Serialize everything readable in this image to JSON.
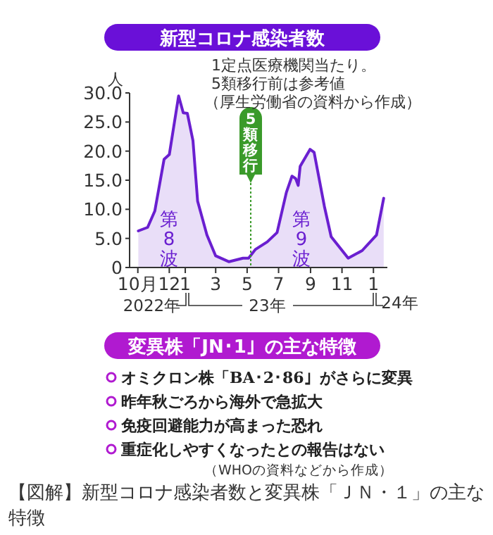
{
  "chart_data": [
    {
      "type": "area",
      "title": "新型コロナ感染者数",
      "ylabel": "人",
      "annotations": [
        "1定点医療機関当たり。",
        "5類移行前は参考値",
        "（厚生労働省の資料から作成）",
        "2022年",
        "23年",
        "24年",
        "第8波",
        "第9波"
      ],
      "x": [
        "2022-10-02",
        "2022-10-20",
        "2022-11-03",
        "2022-11-21",
        "2022-12-01",
        "2022-12-19",
        "2022-12-28",
        "2023-01-05",
        "2023-01-16",
        "2023-01-25",
        "2023-02-12",
        "2023-03-01",
        "2023-03-27",
        "2023-04-23",
        "2023-05-04",
        "2023-05-17",
        "2023-06-09",
        "2023-06-28",
        "2023-07-16",
        "2023-07-27",
        "2023-08-03",
        "2023-08-08",
        "2023-08-12",
        "2023-08-31",
        "2023-09-08",
        "2023-09-28",
        "2023-10-11",
        "2023-11-13",
        "2023-12-10",
        "2024-01-07",
        "2024-01-21"
      ],
      "series": [
        {
          "color": "#6a1fd0",
          "values": [
            6.3,
            6.9,
            9.7,
            18.6,
            19.4,
            29.5,
            26.6,
            26.5,
            21.8,
            11.4,
            5.6,
            2.0,
            1.0,
            1.6,
            1.6,
            3.1,
            4.4,
            6.0,
            12.9,
            15.7,
            15.3,
            14.1,
            17.4,
            20.3,
            19.8,
            10.5,
            5.3,
            1.6,
            2.9,
            5.6,
            11.9
          ]
        }
      ],
      "xlim": [
        "2022-09-15",
        "2024-01-28"
      ],
      "ylim": [
        0,
        30
      ],
      "yticks": [
        0,
        {
          "value": 5,
          "label": "5.0"
        },
        {
          "value": 10,
          "label": "10.0"
        },
        {
          "value": 15,
          "label": "15.0"
        },
        {
          "value": 20,
          "label": "20.0"
        },
        {
          "value": 25,
          "label": "25.0"
        },
        {
          "value": 30,
          "label": "30.0"
        }
      ],
      "xticks": [
        {
          "value": "2022-10-01",
          "label": "10月"
        },
        {
          "value": "2022-12-01",
          "label": "12"
        },
        {
          "value": "2023-01-01",
          "label": "1"
        },
        {
          "value": "2023-03-01",
          "label": "3"
        },
        {
          "value": "2023-05-01",
          "label": "5"
        },
        {
          "value": "2023-07-01",
          "label": "7"
        },
        {
          "value": "2023-09-01",
          "label": "9"
        },
        {
          "value": "2023-11-01",
          "label": "11"
        },
        {
          "value": "2024-01-01",
          "label": "1"
        }
      ],
      "ref_lines": [
        {
          "axis": "x",
          "value": "2023-05-08",
          "label": "5類移行",
          "color": "#3a9a2a",
          "line_style": "dotted"
        }
      ],
      "grid": false
    },
    {
      "type": "other",
      "title": "変異株「JN･1」の主な特徴",
      "annotations": [
        "オミクロン株「BA･2･86」がさらに変異",
        "昨年秋ごろから海外で急拡大",
        "免疫回避能力が高まった恐れ",
        "重症化しやすくなったとの報告はない",
        "（WHOの資料などから作成）",
        "【図解】新型コロナ感染者数と変異株「ＪＮ・１」の主な特徴"
      ]
    }
  ]
}
